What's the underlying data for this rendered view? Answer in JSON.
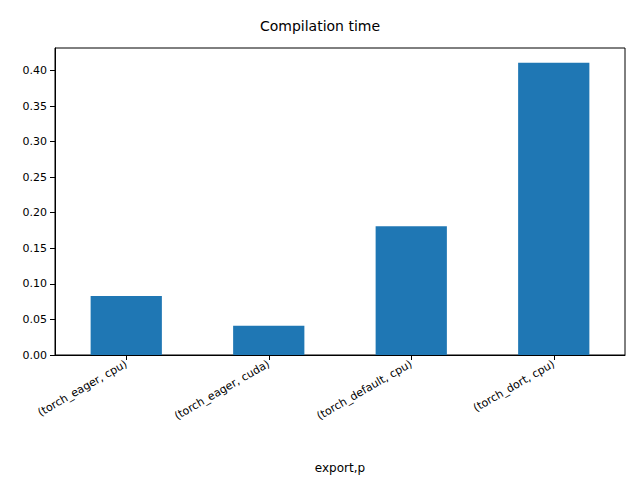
{
  "chart_data": {
    "type": "bar",
    "title": "Compilation time",
    "x_label": "export,p",
    "categories": [
      "(torch_eager, cpu)",
      "(torch_eager, cuda)",
      "(torch_default, cpu)",
      "(torch_dort, cpu)"
    ],
    "values": [
      0.083,
      0.041,
      0.181,
      0.411
    ],
    "color": "#1f77b4",
    "ylim": [
      0,
      0.4316
    ],
    "yticks": [
      {
        "value": 0,
        "label": "0.00"
      },
      {
        "value": 0.05,
        "label": "0.05"
      },
      {
        "value": 0.1,
        "label": "0.10"
      },
      {
        "value": 0.15,
        "label": "0.15"
      },
      {
        "value": 0.2,
        "label": "0.20"
      },
      {
        "value": 0.25,
        "label": "0.25"
      },
      {
        "value": 0.3,
        "label": "0.30"
      },
      {
        "value": 0.35,
        "label": "0.35"
      },
      {
        "value": 0.4,
        "label": "0.40"
      }
    ],
    "grid": false
  }
}
